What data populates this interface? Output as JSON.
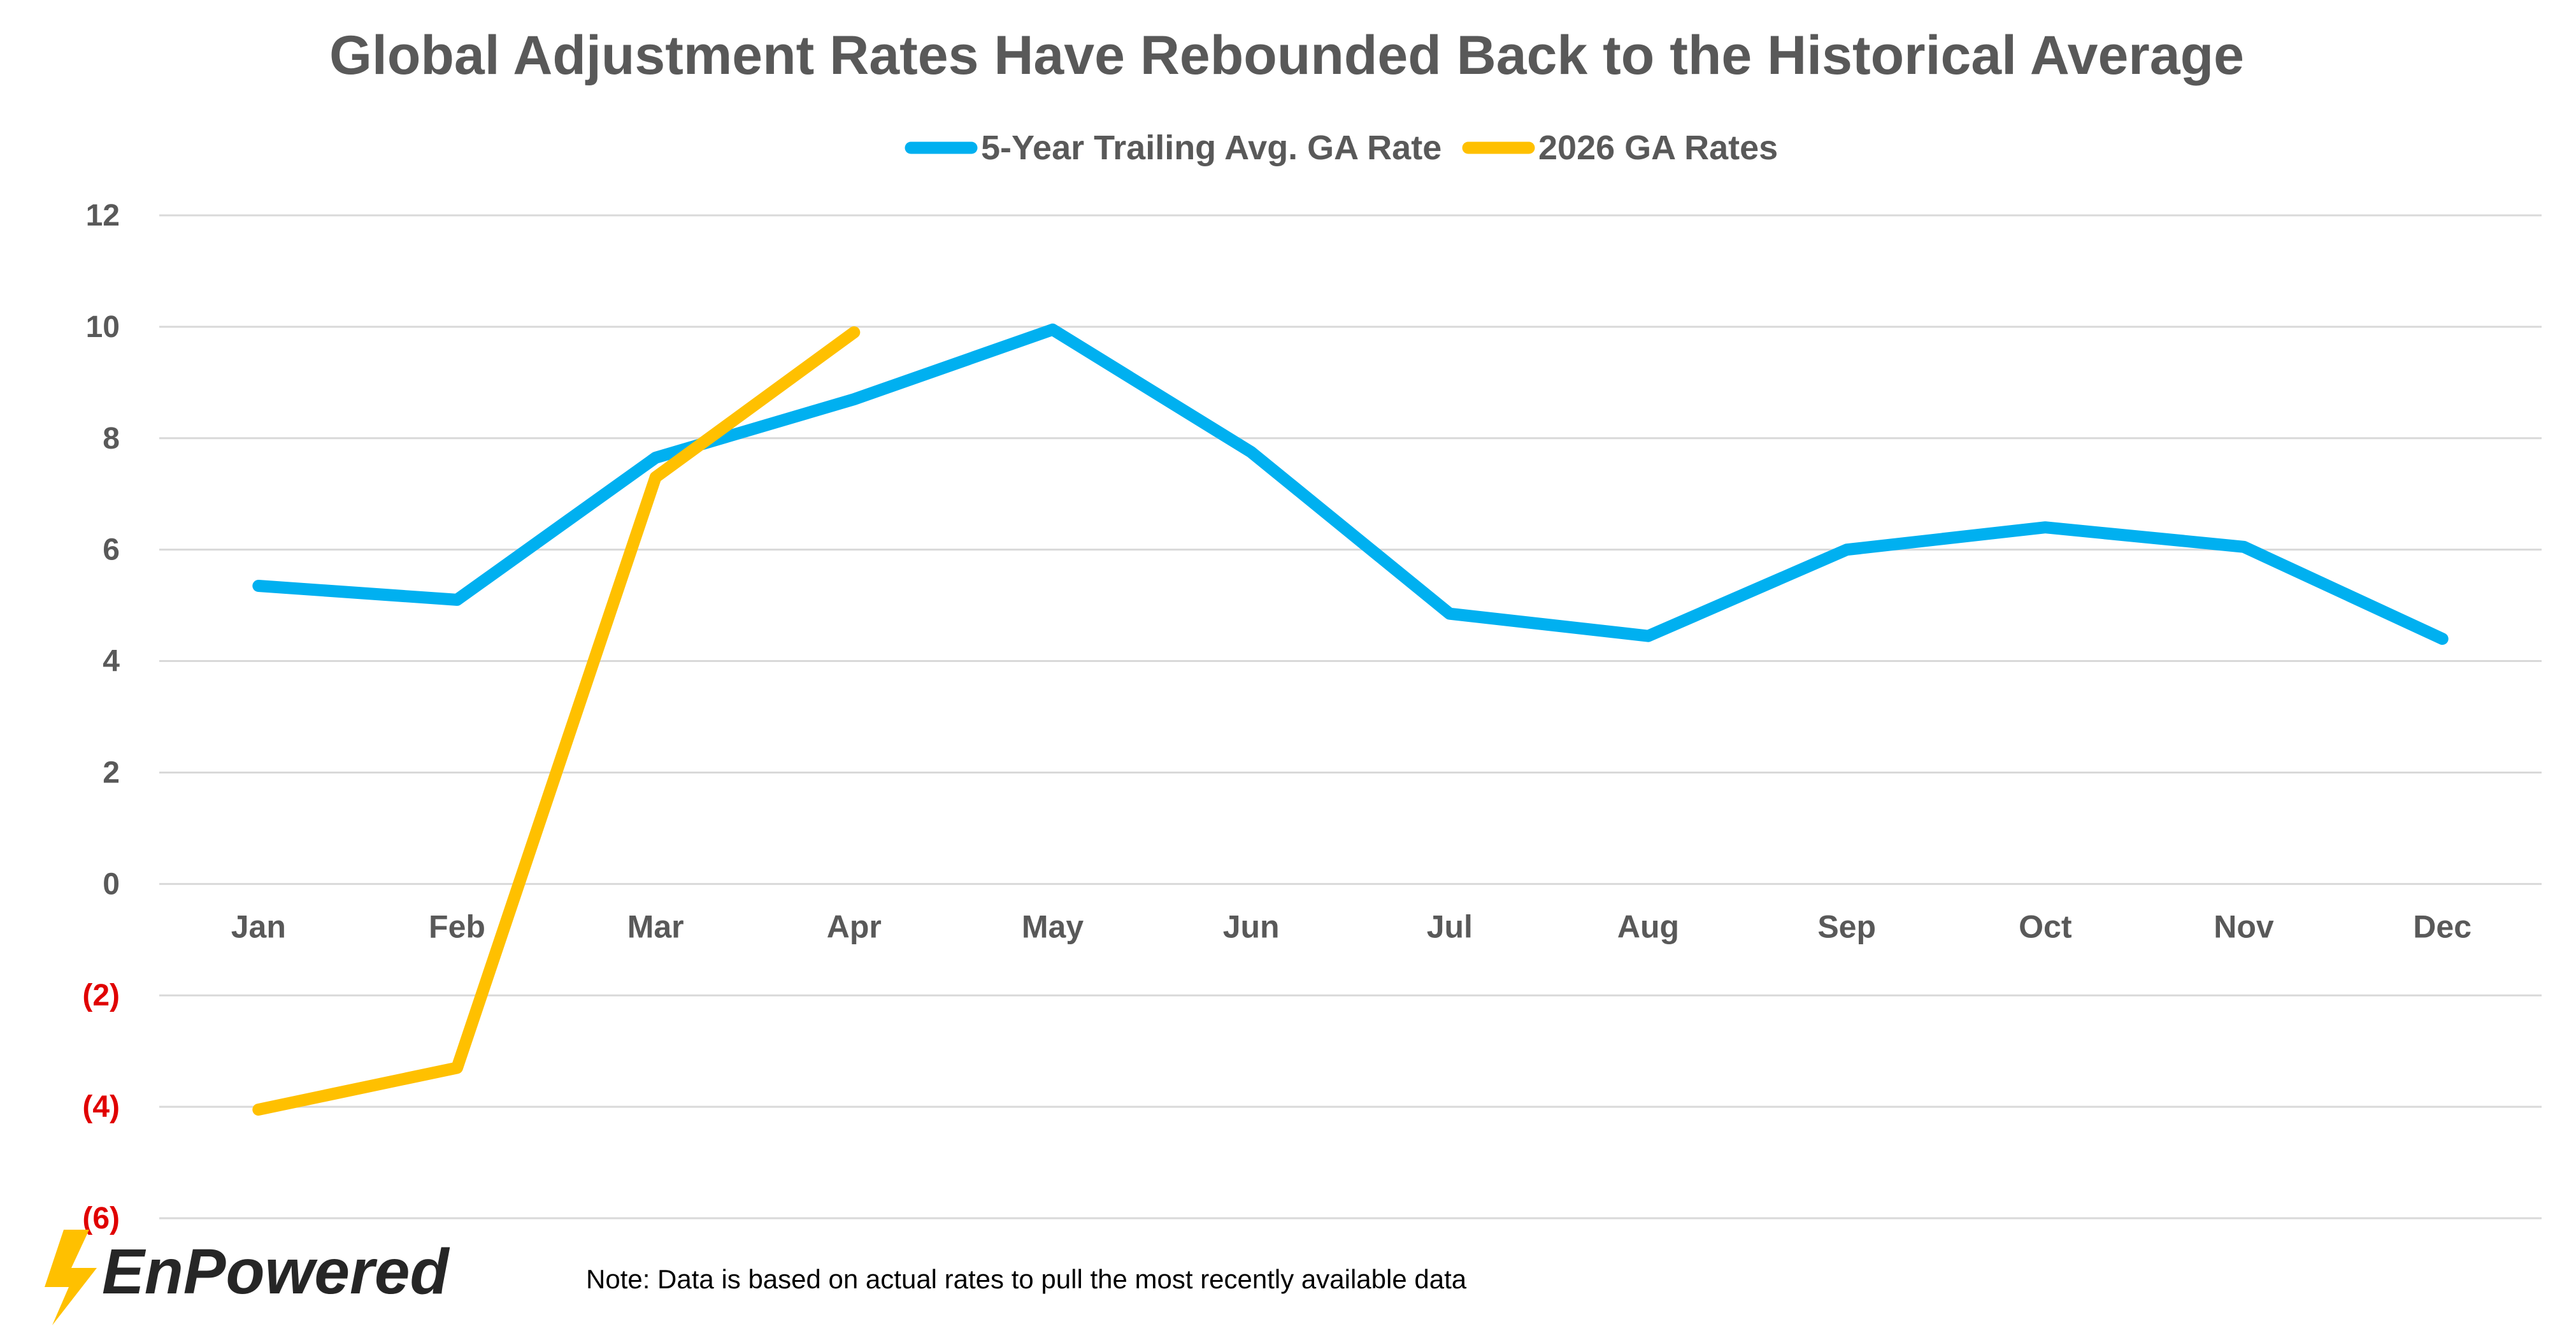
{
  "chart_data": {
    "type": "line",
    "title": "Global Adjustment Rates Have Rebounded Back to the Historical Average",
    "categories": [
      "Jan",
      "Feb",
      "Mar",
      "Apr",
      "May",
      "Jun",
      "Jul",
      "Aug",
      "Sep",
      "Oct",
      "Nov",
      "Dec"
    ],
    "series": [
      {
        "name": "5-Year Trailing Avg. GA Rate",
        "color": "#00b0f0",
        "values": [
          5.35,
          5.1,
          7.65,
          8.7,
          9.95,
          7.75,
          4.85,
          4.45,
          6.0,
          6.4,
          6.05,
          4.4
        ]
      },
      {
        "name": "2026 GA Rates",
        "color": "#ffc000",
        "values": [
          -4.05,
          -3.3,
          7.3,
          9.9,
          null,
          null,
          null,
          null,
          null,
          null,
          null,
          null
        ]
      }
    ],
    "ylim": [
      -6,
      12
    ],
    "yticks": [
      12,
      10,
      8,
      6,
      4,
      2,
      0,
      -2,
      -4,
      -6
    ],
    "ytick_labels": [
      "12",
      "10",
      "8",
      "6",
      "4",
      "2",
      "0",
      "(2)",
      "(4)",
      "(6)"
    ],
    "negative_label_color": "#e00000",
    "grid": true,
    "legend_position": "top-center",
    "xlabel": "",
    "ylabel": ""
  },
  "note": "Note: Data is based on actual rates to pull the most recently available data",
  "logo": {
    "text": "EnPowered",
    "bolt_color": "#ffc000"
  }
}
